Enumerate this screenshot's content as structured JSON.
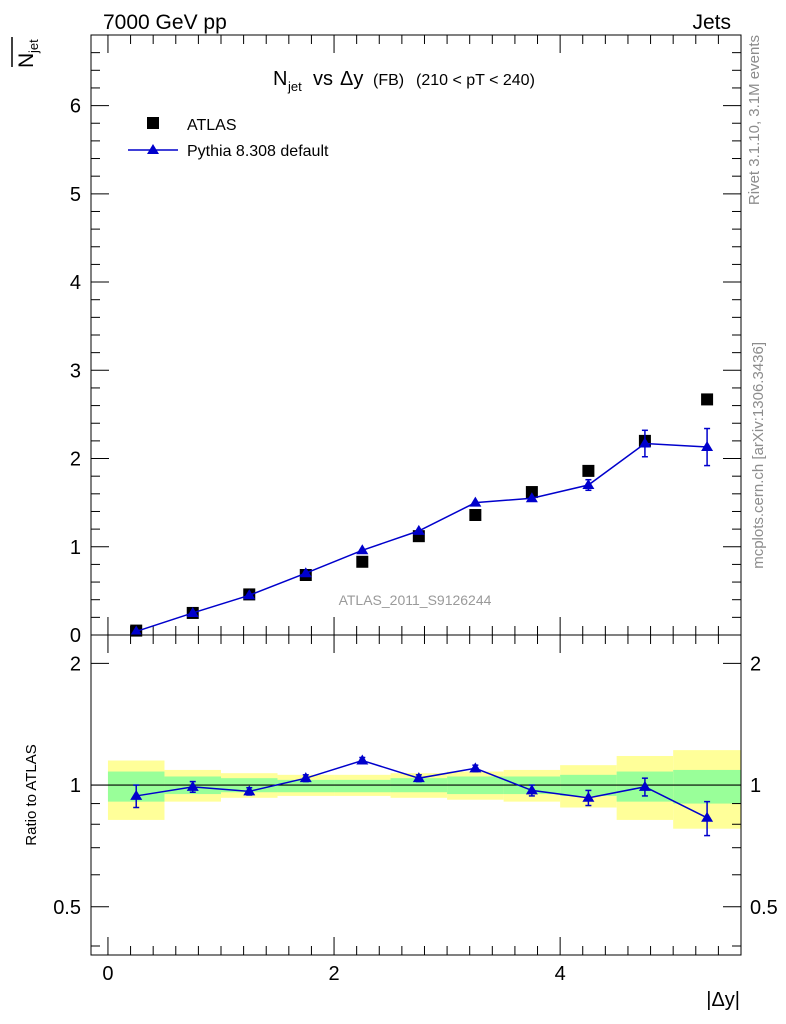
{
  "header": {
    "left": "7000 GeV pp",
    "right": "Jets"
  },
  "side_labels": {
    "top": "Rivet 3.1.10,  3.1M events",
    "bottom": "mcplots.cern.ch [arXiv:1306.3436]"
  },
  "watermark": "ATLAS_2011_S9126244",
  "chart_data": [
    {
      "type": "scatter",
      "title": {
        "main": "N",
        "main_sub": "jet",
        "vs": "vs",
        "delta": "Δy",
        "tag": "(FB)",
        "range": "(210 < pT < 240)"
      },
      "ylabel": {
        "letter": "N",
        "sub": "jet"
      },
      "xlabel": "|Δy|",
      "xlim": [
        -0.15,
        5.6
      ],
      "ylim": [
        0,
        6.8
      ],
      "yticks": [
        0,
        1,
        2,
        3,
        4,
        5,
        6
      ],
      "yticklabels": [
        "0",
        "1",
        "2",
        "3",
        "4",
        "5",
        "6"
      ],
      "x": [
        0.25,
        0.75,
        1.25,
        1.75,
        2.25,
        2.75,
        3.25,
        3.75,
        4.25,
        4.75,
        5.3
      ],
      "series": [
        {
          "name": "ATLAS",
          "color": "#000000",
          "marker": "square",
          "values": [
            0.05,
            0.25,
            0.46,
            0.68,
            0.83,
            1.12,
            1.36,
            1.62,
            1.86,
            2.2,
            2.67
          ]
        },
        {
          "name": "Pythia 8.308 default",
          "color": "#0000cc",
          "marker": "triangle",
          "values": [
            0.04,
            0.25,
            0.45,
            0.7,
            0.96,
            1.18,
            1.5,
            1.55,
            1.7,
            2.17,
            2.13
          ],
          "err": [
            0,
            0,
            0,
            0,
            0,
            0,
            0,
            0,
            0.06,
            0.15,
            0.21
          ]
        }
      ],
      "legend_position": "top-left"
    },
    {
      "type": "line",
      "ylabel": "Ratio to ATLAS",
      "xlim": [
        -0.15,
        5.6
      ],
      "ylim": [
        0.38,
        2.35
      ],
      "yticks": [
        0.5,
        1,
        2
      ],
      "yticklabels": [
        "0.5",
        "1",
        "2"
      ],
      "xticks": [
        0,
        2,
        4
      ],
      "xticklabels": [
        "0",
        "2",
        "4"
      ],
      "bins": [
        [
          0,
          0.5
        ],
        [
          0.5,
          1.0
        ],
        [
          1.0,
          1.5
        ],
        [
          1.5,
          2.0
        ],
        [
          2.0,
          2.5
        ],
        [
          2.5,
          3.0
        ],
        [
          3.0,
          3.5
        ],
        [
          3.5,
          4.0
        ],
        [
          4.0,
          4.5
        ],
        [
          4.5,
          5.0
        ],
        [
          5.0,
          5.6
        ]
      ],
      "band_yellow": [
        [
          0.82,
          1.15
        ],
        [
          0.91,
          1.09
        ],
        [
          0.93,
          1.07
        ],
        [
          0.94,
          1.06
        ],
        [
          0.94,
          1.06
        ],
        [
          0.93,
          1.07
        ],
        [
          0.92,
          1.08
        ],
        [
          0.91,
          1.09
        ],
        [
          0.88,
          1.12
        ],
        [
          0.82,
          1.18
        ],
        [
          0.78,
          1.22
        ]
      ],
      "band_green": [
        [
          0.91,
          1.08
        ],
        [
          0.95,
          1.05
        ],
        [
          0.96,
          1.04
        ],
        [
          0.96,
          1.03
        ],
        [
          0.96,
          1.03
        ],
        [
          0.96,
          1.04
        ],
        [
          0.95,
          1.05
        ],
        [
          0.95,
          1.05
        ],
        [
          0.94,
          1.06
        ],
        [
          0.91,
          1.08
        ],
        [
          0.9,
          1.09
        ]
      ],
      "x": [
        0.25,
        0.75,
        1.25,
        1.75,
        2.25,
        2.75,
        3.25,
        3.75,
        4.25,
        4.75,
        5.3
      ],
      "series": [
        {
          "name": "Pythia 8.308 default",
          "color": "#0000cc",
          "values": [
            0.94,
            0.99,
            0.965,
            1.04,
            1.15,
            1.04,
            1.1,
            0.97,
            0.93,
            0.99,
            0.83
          ],
          "err": [
            0.06,
            0.03,
            0.02,
            0.02,
            0.02,
            0.02,
            0.02,
            0.03,
            0.04,
            0.05,
            0.08
          ]
        }
      ],
      "reference_line": 1
    }
  ]
}
